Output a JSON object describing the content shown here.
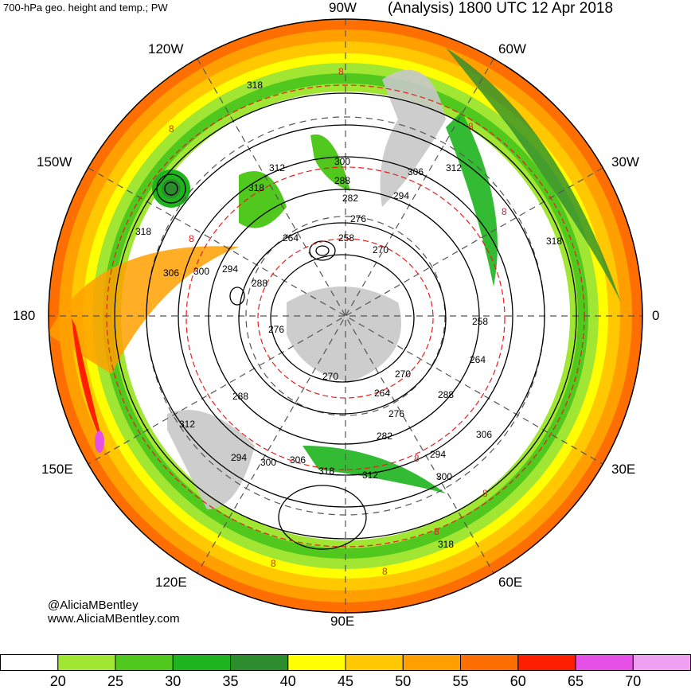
{
  "header": {
    "title_left": "700-hPa geo. height and temp.; PW",
    "title_right": "(Analysis) 1800 UTC 12 Apr 2018"
  },
  "longitude_labels": {
    "lon_90w": "90W",
    "lon_60w": "60W",
    "lon_30w": "30W",
    "lon_0": "0",
    "lon_30e": "30E",
    "lon_60e": "60E",
    "lon_90e": "90E",
    "lon_120e": "120E",
    "lon_150e": "150E",
    "lon_180": "180",
    "lon_150w": "150W",
    "lon_120w": "120W"
  },
  "credit": {
    "handle": "@AliciaMBentley",
    "website": "www.AliciaMBentley.com"
  },
  "contour_labels": {
    "height": [
      "318",
      "318",
      "312",
      "318",
      "300",
      "288",
      "282",
      "276",
      "306",
      "294",
      "312",
      "264",
      "258",
      "270",
      "306",
      "300",
      "294",
      "288",
      "276",
      "258",
      "264",
      "270",
      "270",
      "264",
      "276",
      "288",
      "282",
      "306",
      "294",
      "300",
      "318",
      "312",
      "294",
      "300",
      "306",
      "312",
      "288",
      "318",
      "318"
    ],
    "temperature": [
      "8",
      "8",
      "8",
      "8",
      "8",
      "8",
      "8",
      "8",
      "8",
      "8"
    ]
  },
  "colorbar": {
    "labels": [
      "20",
      "25",
      "30",
      "35",
      "40",
      "45",
      "50",
      "55",
      "60",
      "65",
      "70"
    ],
    "colors": [
      "#ffffff",
      "#a0e632",
      "#50c81e",
      "#1eb41e",
      "#2d8c2d",
      "#ffff00",
      "#ffc800",
      "#ffa000",
      "#ff6e00",
      "#ff1e00",
      "#e650e6",
      "#f0a0f0"
    ]
  },
  "map_colors": {
    "white": "#ffffff",
    "light_green": "#a0e632",
    "green": "#50c81e",
    "mid_green": "#1eb41e",
    "dark_green": "#2d8c2d",
    "yellow": "#ffff00",
    "gold": "#ffc800",
    "orange": "#ffa000",
    "dark_orange": "#ff6e00",
    "red": "#ff1e00",
    "magenta": "#e650e6",
    "land_gray": "#c8c8c8",
    "temp_contour": "#e61e1e"
  }
}
